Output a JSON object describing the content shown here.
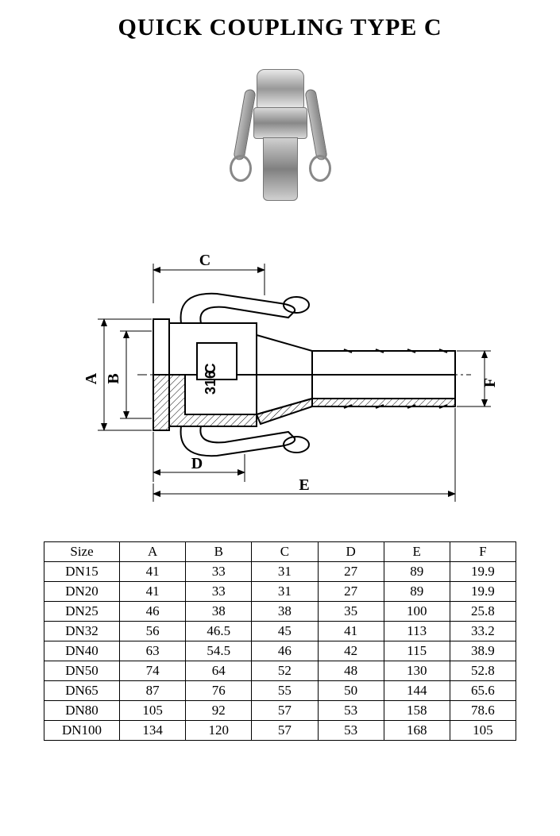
{
  "title": "QUICK COUPLING TYPE C",
  "diagram": {
    "labels": {
      "A": "A",
      "B": "B",
      "C": "C",
      "D": "D",
      "E": "E",
      "F": "F"
    },
    "marking_top": "C",
    "marking_bottom": "316",
    "stroke_color": "#000000",
    "fill_color": "#ffffff",
    "hatch_color": "#000000",
    "label_fontsize": 20
  },
  "table": {
    "columns": [
      "Size",
      "A",
      "B",
      "C",
      "D",
      "E",
      "F"
    ],
    "rows": [
      [
        "DN15",
        "41",
        "33",
        "31",
        "27",
        "89",
        "19.9"
      ],
      [
        "DN20",
        "41",
        "33",
        "31",
        "27",
        "89",
        "19.9"
      ],
      [
        "DN25",
        "46",
        "38",
        "38",
        "35",
        "100",
        "25.8"
      ],
      [
        "DN32",
        "56",
        "46.5",
        "45",
        "41",
        "113",
        "33.2"
      ],
      [
        "DN40",
        "63",
        "54.5",
        "46",
        "42",
        "115",
        "38.9"
      ],
      [
        "DN50",
        "74",
        "64",
        "52",
        "48",
        "130",
        "52.8"
      ],
      [
        "DN65",
        "87",
        "76",
        "55",
        "50",
        "144",
        "65.6"
      ],
      [
        "DN80",
        "105",
        "92",
        "57",
        "53",
        "158",
        "78.6"
      ],
      [
        "DN100",
        "134",
        "120",
        "57",
        "53",
        "168",
        "105"
      ]
    ],
    "col_widths": [
      "16%",
      "14%",
      "14%",
      "14%",
      "14%",
      "14%",
      "14%"
    ],
    "border_color": "#000000",
    "font_size": 17
  }
}
